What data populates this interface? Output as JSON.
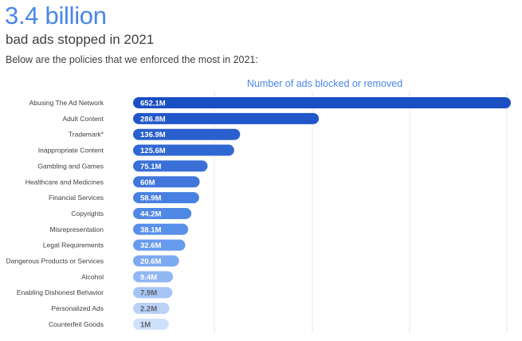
{
  "header": {
    "headline": "3.4 billion",
    "subhead": "bad ads stopped in 2021",
    "intro": "Below are the policies that we enforced the most in 2021:"
  },
  "colors": {
    "accent": "#4a86e8",
    "bar_dark": "#1a4fc4",
    "bar_light": "#cfe0fb",
    "grid": "#e5e7eb"
  },
  "chart_data": {
    "type": "bar",
    "orientation": "horizontal",
    "title": "Number of ads blocked or removed",
    "xlabel": "",
    "ylabel": "",
    "xlim": [
      0,
      652.1
    ],
    "grid": true,
    "categories": [
      "Abusing The Ad Network",
      "Adult Content",
      "Trademark*",
      "Inappropriate Content",
      "Gambling and Games",
      "Healthcare and Medicines",
      "Financial Services",
      "Copyrights",
      "Misrepresentation",
      "Legal Requirements",
      "Dangerous Products or Services",
      "Alcohol",
      "Enabling Dishonest Behavior",
      "Personalized Ads",
      "Counterfeit Goods"
    ],
    "values": [
      652.1,
      286.8,
      136.9,
      125.6,
      75.1,
      60,
      58.9,
      44.2,
      38.1,
      32.6,
      20.6,
      9.4,
      7.9,
      2.2,
      1
    ],
    "value_labels": [
      "652.1M",
      "286.8M",
      "136.9M",
      "125.6M",
      "75.1M",
      "60M",
      "58.9M",
      "44.2M",
      "38.1M",
      "32.6M",
      "20.6M",
      "9.4M",
      "7.9M",
      "2.2M",
      "1M"
    ],
    "unit": "M"
  }
}
